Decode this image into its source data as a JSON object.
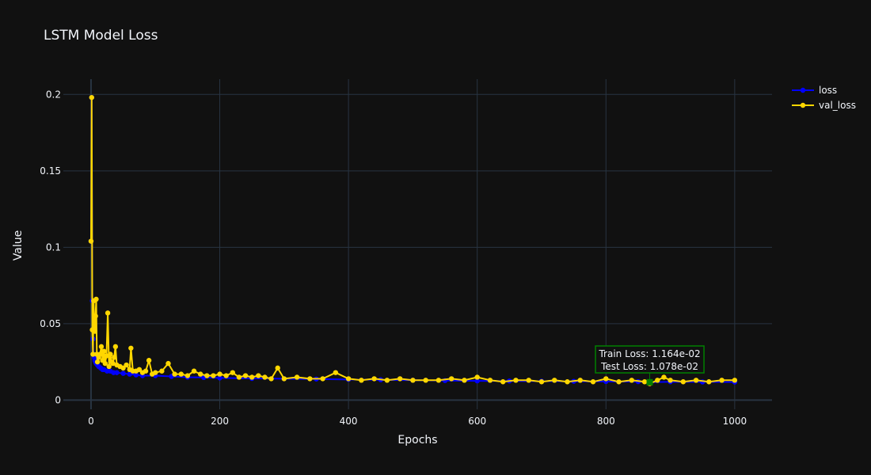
{
  "chart_data": {
    "type": "line",
    "title": "LSTM Model Loss",
    "xlabel": "Epochs",
    "ylabel": "Value",
    "xlim": [
      -43,
      1058
    ],
    "ylim": [
      -0.006,
      0.21
    ],
    "x_ticks": [
      0,
      200,
      400,
      600,
      800,
      1000
    ],
    "x_tick_labels": [
      "0",
      "200",
      "400",
      "600",
      "800",
      "1000"
    ],
    "y_ticks": [
      0,
      0.05,
      0.1,
      0.15,
      0.2
    ],
    "y_tick_labels": [
      "0",
      "0.05",
      "0.1",
      "0.15",
      "0.2"
    ],
    "grid": true,
    "legend_position": "top-right",
    "series": [
      {
        "name": "loss",
        "color": "#0000ff",
        "x": [
          0,
          1,
          2,
          3,
          4,
          5,
          6,
          7,
          8,
          10,
          12,
          15,
          18,
          20,
          25,
          30,
          35,
          40,
          50,
          60,
          70,
          80,
          100,
          125,
          150,
          175,
          200,
          250,
          300,
          350,
          400,
          450,
          500,
          550,
          600,
          650,
          700,
          750,
          800,
          850,
          868,
          900,
          950,
          1000
        ],
        "values": [
          0.104,
          0.198,
          0.065,
          0.04,
          0.03,
          0.028,
          0.026,
          0.025,
          0.024,
          0.023,
          0.022,
          0.021,
          0.02,
          0.02,
          0.019,
          0.019,
          0.018,
          0.018,
          0.0175,
          0.017,
          0.0165,
          0.016,
          0.016,
          0.0155,
          0.015,
          0.0148,
          0.0145,
          0.0142,
          0.014,
          0.0138,
          0.0135,
          0.0133,
          0.013,
          0.0128,
          0.0126,
          0.0125,
          0.0124,
          0.0123,
          0.0122,
          0.0121,
          0.01164,
          0.012,
          0.0119,
          0.0118
        ]
      },
      {
        "name": "val_loss",
        "color": "#ffd700",
        "x": [
          0,
          1,
          2,
          3,
          4,
          5,
          6,
          7,
          8,
          9,
          10,
          12,
          14,
          16,
          18,
          20,
          22,
          24,
          26,
          28,
          30,
          32,
          34,
          36,
          38,
          40,
          45,
          50,
          55,
          60,
          62,
          65,
          70,
          75,
          80,
          85,
          90,
          95,
          100,
          110,
          120,
          130,
          140,
          150,
          160,
          170,
          180,
          190,
          200,
          210,
          220,
          230,
          240,
          250,
          260,
          270,
          280,
          290,
          300,
          320,
          340,
          360,
          380,
          400,
          420,
          440,
          460,
          480,
          500,
          520,
          540,
          560,
          580,
          600,
          620,
          640,
          660,
          680,
          700,
          720,
          740,
          760,
          780,
          800,
          820,
          840,
          860,
          868,
          880,
          890,
          900,
          920,
          940,
          960,
          980,
          1000
        ],
        "values": [
          0.104,
          0.198,
          0.046,
          0.03,
          0.065,
          0.05,
          0.045,
          0.055,
          0.066,
          0.03,
          0.025,
          0.028,
          0.03,
          0.035,
          0.026,
          0.032,
          0.024,
          0.029,
          0.057,
          0.022,
          0.03,
          0.025,
          0.024,
          0.028,
          0.035,
          0.023,
          0.022,
          0.021,
          0.023,
          0.02,
          0.034,
          0.019,
          0.019,
          0.02,
          0.018,
          0.019,
          0.026,
          0.017,
          0.018,
          0.019,
          0.024,
          0.017,
          0.017,
          0.016,
          0.019,
          0.017,
          0.016,
          0.016,
          0.017,
          0.016,
          0.018,
          0.015,
          0.016,
          0.015,
          0.016,
          0.015,
          0.014,
          0.021,
          0.014,
          0.015,
          0.014,
          0.014,
          0.018,
          0.014,
          0.013,
          0.014,
          0.013,
          0.014,
          0.013,
          0.013,
          0.013,
          0.014,
          0.013,
          0.015,
          0.013,
          0.012,
          0.013,
          0.013,
          0.012,
          0.013,
          0.012,
          0.013,
          0.012,
          0.014,
          0.012,
          0.013,
          0.012,
          0.01078,
          0.013,
          0.015,
          0.013,
          0.012,
          0.013,
          0.012,
          0.013,
          0.013
        ]
      }
    ],
    "annotation": {
      "x": 868,
      "y": 0.0117,
      "line1": "Train Loss: 1.164e-02",
      "line2": "Test Loss: 1.078e-02",
      "border_color": "#008000",
      "marker_color": "#008000"
    },
    "colors": {
      "background": "#111111",
      "grid": "#283442",
      "zeroline": "#283442",
      "text": "#f2f5fa"
    }
  }
}
